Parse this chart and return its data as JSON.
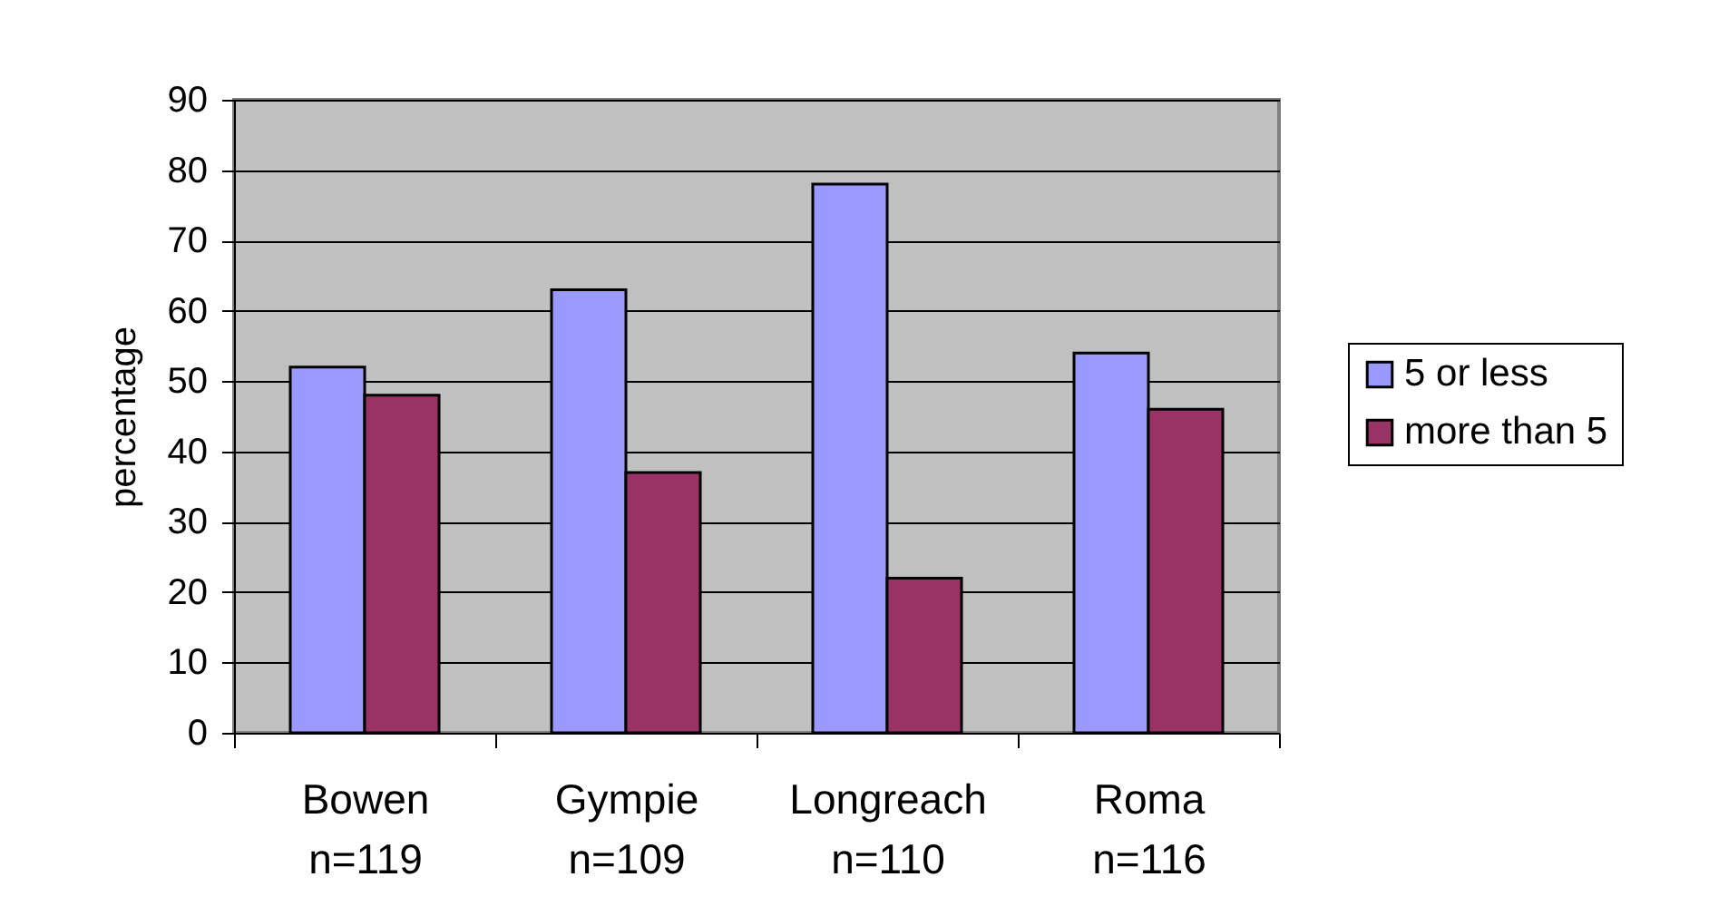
{
  "chart_data": {
    "type": "bar",
    "categories": [
      "Bowen\nn=119",
      "Gympie\nn=109",
      "Longreach\nn=110",
      "Roma\nn=116"
    ],
    "series": [
      {
        "name": "5 or less",
        "color": "#9999ff",
        "values": [
          52,
          63,
          78,
          54
        ]
      },
      {
        "name": "more than 5",
        "color": "#993366",
        "values": [
          48,
          37,
          22,
          46
        ]
      }
    ],
    "ylabel": "percentage",
    "ylim": [
      0,
      90
    ],
    "yticks": [
      0,
      10,
      20,
      30,
      40,
      50,
      60,
      70,
      80,
      90
    ],
    "grid": "y",
    "legend": "right"
  }
}
